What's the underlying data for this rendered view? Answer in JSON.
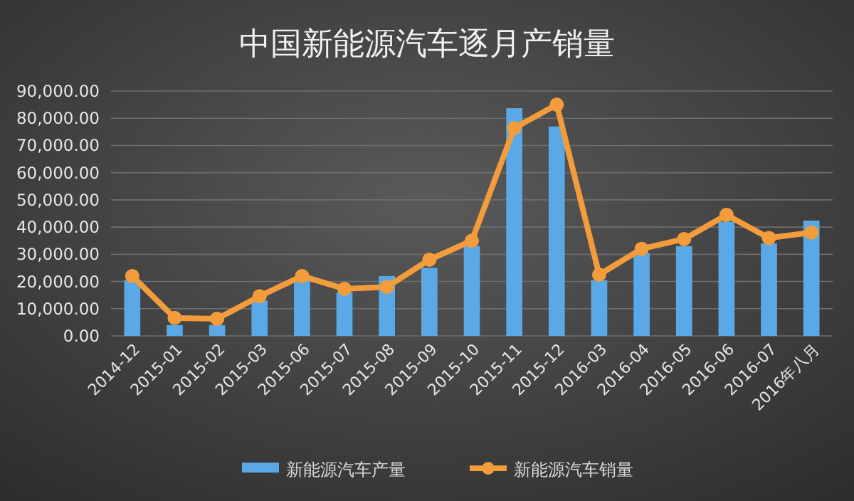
{
  "chart_data": {
    "type": "bar",
    "title": "中国新能源汽车逐月产销量",
    "categories": [
      "2014-12",
      "2015-01",
      "2015-02",
      "2015-03",
      "2015-06",
      "2015-07",
      "2015-08",
      "2015-09",
      "2015-10",
      "2015-11",
      "2015-12",
      "2016-03",
      "2016-04",
      "2016-05",
      "2016-06",
      "2016-07",
      "2016年八月"
    ],
    "series": [
      {
        "name": "新能源汽车产量",
        "color": "#5aa9e6",
        "values": [
          20500,
          4000,
          4000,
          13000,
          20500,
          16000,
          22000,
          25000,
          33000,
          83700,
          77000,
          20500,
          30400,
          33000,
          42000,
          34000,
          42400
        ]
      },
      {
        "name": "新能源汽车销量",
        "type": "line",
        "color": "#f39c3c",
        "marker": "circle",
        "values": [
          22000,
          6600,
          6300,
          14600,
          22000,
          17300,
          18000,
          28000,
          35000,
          76400,
          85000,
          22500,
          32000,
          35600,
          44500,
          36000,
          38000
        ]
      }
    ],
    "ylim": [
      0,
      90000
    ],
    "yticks": [
      {
        "value": 0,
        "label": "0.00"
      },
      {
        "value": 10000,
        "label": "10,000.00"
      },
      {
        "value": 20000,
        "label": "20,000.00"
      },
      {
        "value": 30000,
        "label": "30,000.00"
      },
      {
        "value": 40000,
        "label": "40,000.00"
      },
      {
        "value": 50000,
        "label": "50,000.00"
      },
      {
        "value": 60000,
        "label": "60,000.00"
      },
      {
        "value": 70000,
        "label": "70,000.00"
      },
      {
        "value": 80000,
        "label": "80,000.00"
      },
      {
        "value": 90000,
        "label": "90,000.00"
      }
    ],
    "grid": "y",
    "legend": "bottom"
  }
}
